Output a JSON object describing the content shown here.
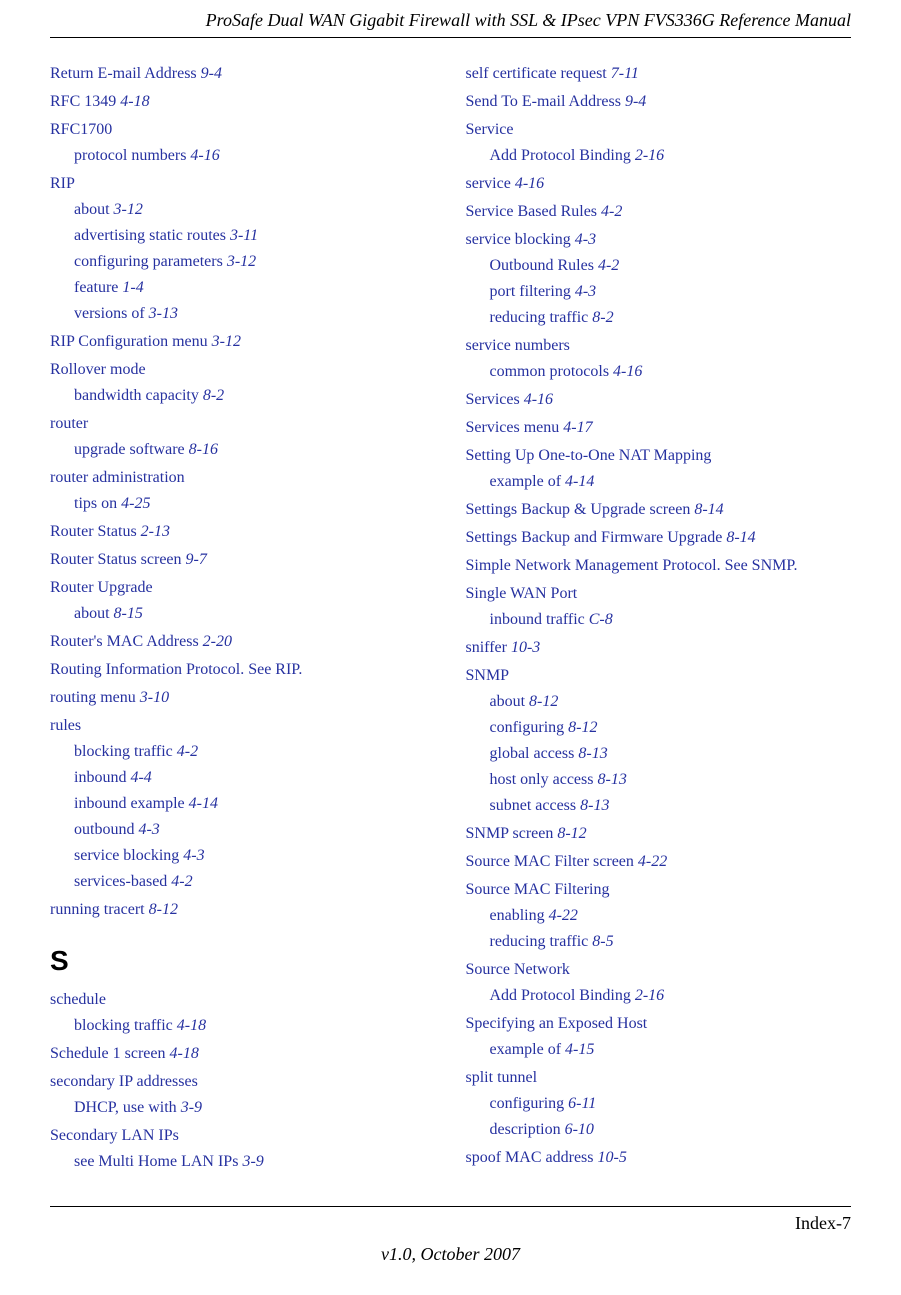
{
  "header_title": "ProSafe Dual WAN Gigabit Firewall with SSL & IPsec VPN FVS336G Reference Manual",
  "footer_page": "Index-7",
  "footer_version": "v1.0, October 2007",
  "colors": {
    "link": "#2631a0",
    "text": "#000000",
    "bg": "#ffffff"
  },
  "typography": {
    "body_font": "Times New Roman",
    "body_size_pt": 12,
    "letter_font": "Arial",
    "letter_size_pt": 20,
    "header_size_pt": 14
  },
  "left": [
    {
      "t": "Return E-mail Address",
      "r": "9-4"
    },
    {
      "t": "RFC 1349",
      "r": "4-18"
    },
    {
      "t": "RFC1700"
    },
    {
      "t": "protocol numbers",
      "r": "4-16",
      "s": 1
    },
    {
      "t": "RIP"
    },
    {
      "t": "about",
      "r": "3-12",
      "s": 1
    },
    {
      "t": "advertising static routes",
      "r": "3-11",
      "s": 1
    },
    {
      "t": "configuring parameters",
      "r": "3-12",
      "s": 1
    },
    {
      "t": "feature",
      "r": "1-4",
      "s": 1
    },
    {
      "t": "versions of",
      "r": "3-13",
      "s": 1
    },
    {
      "t": "RIP Configuration menu",
      "r": "3-12"
    },
    {
      "t": "Rollover mode"
    },
    {
      "t": "bandwidth capacity",
      "r": "8-2",
      "s": 1
    },
    {
      "t": "router"
    },
    {
      "t": "upgrade software",
      "r": "8-16",
      "s": 1
    },
    {
      "t": "router administration"
    },
    {
      "t": "tips on",
      "r": "4-25",
      "s": 1
    },
    {
      "t": "Router Status",
      "r": "2-13"
    },
    {
      "t": "Router Status screen",
      "r": "9-7"
    },
    {
      "t": "Router Upgrade"
    },
    {
      "t": "about",
      "r": "8-15",
      "s": 1
    },
    {
      "t": "Router's MAC Address",
      "r": "2-20"
    },
    {
      "t": "Routing Information Protocol. See RIP."
    },
    {
      "t": "routing menu",
      "r": "3-10"
    },
    {
      "t": "rules"
    },
    {
      "t": "blocking traffic",
      "r": "4-2",
      "s": 1
    },
    {
      "t": "inbound",
      "r": "4-4",
      "s": 1
    },
    {
      "t": "inbound example",
      "r": "4-14",
      "s": 1
    },
    {
      "t": "outbound",
      "r": "4-3",
      "s": 1
    },
    {
      "t": "service blocking",
      "r": "4-3",
      "s": 1
    },
    {
      "t": "services-based",
      "r": "4-2",
      "s": 1
    },
    {
      "t": "running tracert",
      "r": "8-12"
    },
    {
      "letter": "S"
    },
    {
      "t": "schedule"
    },
    {
      "t": "blocking traffic",
      "r": "4-18",
      "s": 1
    },
    {
      "t": "Schedule 1 screen",
      "r": "4-18"
    },
    {
      "t": "secondary IP addresses"
    },
    {
      "t": "DHCP, use with",
      "r": "3-9",
      "s": 1
    },
    {
      "t": "Secondary LAN IPs"
    },
    {
      "t": "see Multi Home LAN IPs",
      "r": "3-9",
      "s": 1
    }
  ],
  "right": [
    {
      "t": "self certificate request",
      "r": "7-11"
    },
    {
      "t": "Send To E-mail Address",
      "r": "9-4"
    },
    {
      "t": "Service"
    },
    {
      "t": "Add Protocol Binding",
      "r": "2-16",
      "s": 1
    },
    {
      "t": "service",
      "r": "4-16"
    },
    {
      "t": "Service Based Rules",
      "r": "4-2"
    },
    {
      "t": "service blocking",
      "r": "4-3"
    },
    {
      "t": "Outbound Rules",
      "r": "4-2",
      "s": 1
    },
    {
      "t": "port filtering",
      "r": "4-3",
      "s": 1
    },
    {
      "t": "reducing traffic",
      "r": "8-2",
      "s": 1
    },
    {
      "t": "service numbers"
    },
    {
      "t": "common protocols",
      "r": "4-16",
      "s": 1
    },
    {
      "t": "Services",
      "r": "4-16"
    },
    {
      "t": "Services menu",
      "r": "4-17"
    },
    {
      "t": "Setting Up One-to-One NAT Mapping"
    },
    {
      "t": "example of",
      "r": "4-14",
      "s": 1
    },
    {
      "t": "Settings Backup & Upgrade screen",
      "r": "8-14"
    },
    {
      "t": "Settings Backup and Firmware Upgrade",
      "r": "8-14"
    },
    {
      "t": "Simple Network Management Protocol. See SNMP."
    },
    {
      "t": "Single WAN Port"
    },
    {
      "t": "inbound traffic",
      "r": "C-8",
      "s": 1
    },
    {
      "t": "sniffer",
      "r": "10-3"
    },
    {
      "t": "SNMP"
    },
    {
      "t": "about",
      "r": "8-12",
      "s": 1
    },
    {
      "t": "configuring",
      "r": "8-12",
      "s": 1
    },
    {
      "t": "global access",
      "r": "8-13",
      "s": 1
    },
    {
      "t": "host only access",
      "r": "8-13",
      "s": 1
    },
    {
      "t": "subnet access",
      "r": "8-13",
      "s": 1
    },
    {
      "t": "SNMP screen",
      "r": "8-12"
    },
    {
      "t": "Source MAC Filter screen",
      "r": "4-22"
    },
    {
      "t": "Source MAC Filtering"
    },
    {
      "t": "enabling",
      "r": "4-22",
      "s": 1
    },
    {
      "t": "reducing traffic",
      "r": "8-5",
      "s": 1
    },
    {
      "t": "Source Network"
    },
    {
      "t": "Add Protocol Binding",
      "r": "2-16",
      "s": 1
    },
    {
      "t": "Specifying an Exposed Host"
    },
    {
      "t": "example of",
      "r": "4-15",
      "s": 1
    },
    {
      "t": "split tunnel"
    },
    {
      "t": "configuring",
      "r": "6-11",
      "s": 1
    },
    {
      "t": "description",
      "r": "6-10",
      "s": 1
    },
    {
      "t": "spoof MAC address",
      "r": "10-5"
    }
  ]
}
